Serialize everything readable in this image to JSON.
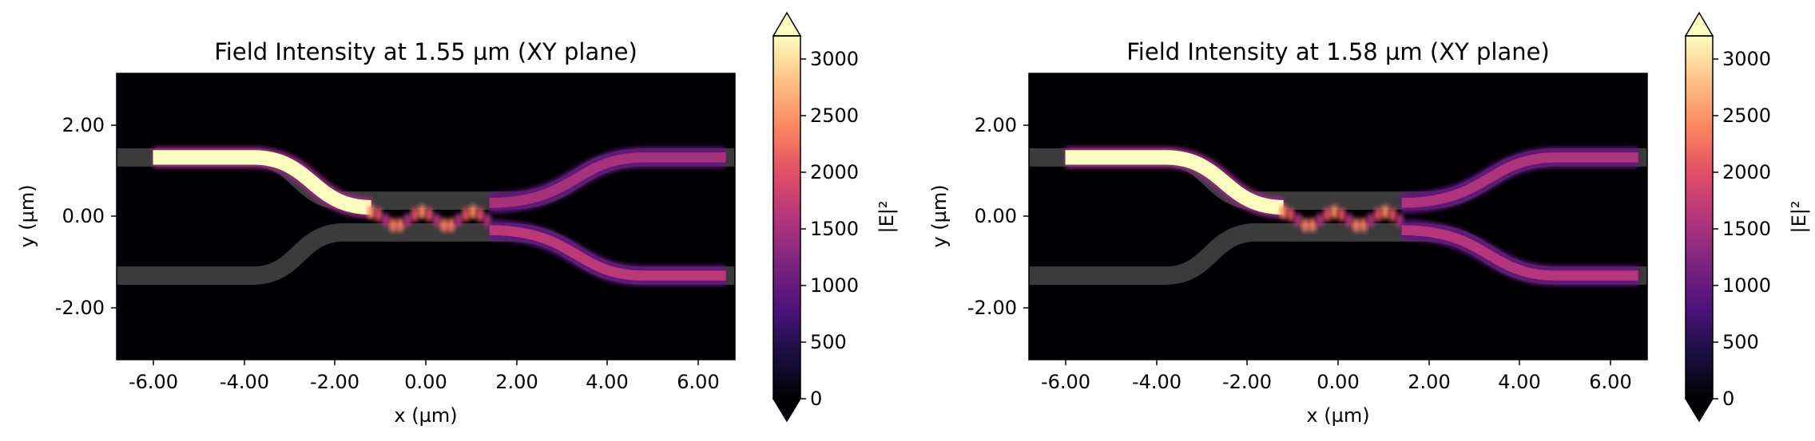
{
  "chart_data": [
    {
      "type": "heatmap",
      "title": "Field Intensity at 1.55 µm (XY plane)",
      "xlabel": "x (µm)",
      "ylabel": "y (µm)",
      "xlim": [
        -6.8,
        6.8
      ],
      "ylim": [
        -3.15,
        3.15
      ],
      "x_ticks": [
        "-6.00",
        "-4.00",
        "-2.00",
        "0.00",
        "2.00",
        "4.00",
        "6.00"
      ],
      "y_ticks": [
        "2.00",
        "0.00",
        "-2.00"
      ],
      "colorbar": {
        "label": "|E|²",
        "ticks": [
          "0",
          "500",
          "1000",
          "1500",
          "2000",
          "2500",
          "3000"
        ],
        "range": [
          0,
          3200
        ],
        "colormap": "magma",
        "extend": "both"
      },
      "background": "#000004",
      "waveguide_color": "#3b3b3b",
      "field": {
        "input_arm_intensity": 3300,
        "coupler_peak_intensity": 2400,
        "upper_output_intensity": 1500,
        "lower_output_intensity": 1650
      }
    },
    {
      "type": "heatmap",
      "title": "Field Intensity at 1.58 µm (XY plane)",
      "xlabel": "x (µm)",
      "ylabel": "y (µm)",
      "xlim": [
        -6.8,
        6.8
      ],
      "ylim": [
        -3.15,
        3.15
      ],
      "x_ticks": [
        "-6.00",
        "-4.00",
        "-2.00",
        "0.00",
        "2.00",
        "4.00",
        "6.00"
      ],
      "y_ticks": [
        "2.00",
        "0.00",
        "-2.00"
      ],
      "colorbar": {
        "label": "|E|²",
        "ticks": [
          "0",
          "500",
          "1000",
          "1500",
          "2000",
          "2500",
          "3000"
        ],
        "range": [
          0,
          3200
        ],
        "colormap": "magma",
        "extend": "both"
      },
      "background": "#000004",
      "waveguide_color": "#3b3b3b",
      "field": {
        "input_arm_intensity": 3300,
        "coupler_peak_intensity": 2400,
        "upper_output_intensity": 1550,
        "lower_output_intensity": 1600
      }
    }
  ]
}
